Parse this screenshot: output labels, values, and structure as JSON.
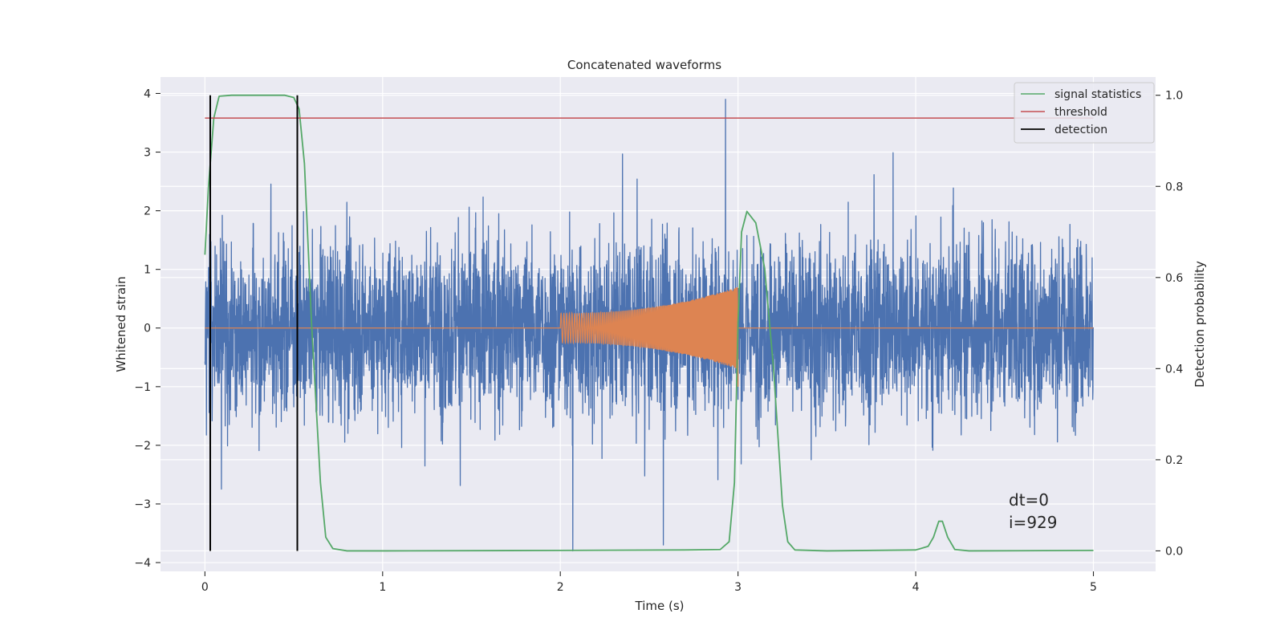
{
  "chart_data": {
    "type": "line",
    "title": "Concatenated waveforms",
    "xlabel": "Time (s)",
    "ylabel_left": "Whitened strain",
    "ylabel_right": "Detection probability",
    "xlim": [
      -0.25,
      5.35
    ],
    "ylim_left": [
      -4.15,
      4.28
    ],
    "ylim_right": [
      -0.045,
      1.04
    ],
    "x_ticks": [
      0,
      1,
      2,
      3,
      4,
      5
    ],
    "y_ticks_left": [
      -4,
      -3,
      -2,
      -1,
      0,
      1,
      2,
      3,
      4
    ],
    "y_ticks_right": [
      0.0,
      0.2,
      0.4,
      0.6,
      0.8,
      1.0
    ],
    "x_tick_labels": [
      "0",
      "1",
      "2",
      "3",
      "4",
      "5"
    ],
    "y_tick_labels_left": [
      "−4",
      "−3",
      "−2",
      "−1",
      "0",
      "1",
      "2",
      "3",
      "4"
    ],
    "y_tick_labels_right": [
      "0.0",
      "0.2",
      "0.4",
      "0.6",
      "0.8",
      "1.0"
    ],
    "grid": true,
    "legend_position": "top-right",
    "colors": {
      "strain": "#4c72b0",
      "injection": "#dd8452",
      "statistics": "#55a868",
      "threshold": "#c44e52",
      "detection": "#000000",
      "background": "#eaeaf2",
      "grid": "#ffffff"
    },
    "series": [
      {
        "name": "",
        "axis": "left",
        "kind": "noise",
        "x_range": [
          0,
          5
        ],
        "amplitude_range": [
          -3.8,
          3.9
        ],
        "notable_peaks": [
          {
            "x": 0.03,
            "y": -2.7
          },
          {
            "x": 2.07,
            "y": -3.8
          },
          {
            "x": 2.58,
            "y": -3.7
          },
          {
            "x": 2.93,
            "y": 3.9
          }
        ]
      },
      {
        "name": "",
        "axis": "left",
        "kind": "chirp",
        "x_range": [
          2.0,
          3.0
        ],
        "amplitude_start": 0.25,
        "amplitude_end": 0.7
      },
      {
        "name": "signal statistics",
        "axis": "right",
        "x": [
          0,
          0.02,
          0.05,
          0.08,
          0.15,
          0.3,
          0.45,
          0.5,
          0.53,
          0.56,
          0.6,
          0.65,
          0.68,
          0.72,
          0.8,
          1.0,
          2.0,
          2.7,
          2.9,
          2.95,
          2.98,
          3.0,
          3.02,
          3.05,
          3.1,
          3.15,
          3.2,
          3.25,
          3.28,
          3.32,
          3.5,
          4.0,
          4.07,
          4.1,
          4.13,
          4.15,
          4.18,
          4.22,
          4.3,
          5.0
        ],
        "y": [
          0.65,
          0.8,
          0.95,
          0.998,
          1.0,
          1.0,
          1.0,
          0.995,
          0.97,
          0.85,
          0.5,
          0.15,
          0.03,
          0.005,
          0.0,
          0.0,
          0.001,
          0.002,
          0.003,
          0.02,
          0.15,
          0.5,
          0.7,
          0.745,
          0.72,
          0.62,
          0.4,
          0.1,
          0.02,
          0.002,
          0.0,
          0.002,
          0.01,
          0.03,
          0.065,
          0.065,
          0.03,
          0.003,
          0.0,
          0.001
        ]
      },
      {
        "name": "threshold",
        "axis": "right",
        "x": [
          0,
          5
        ],
        "y": [
          0.95,
          0.95
        ]
      },
      {
        "name": "detection",
        "axis": "right",
        "kind": "vlines",
        "x": [
          0.03,
          0.52
        ],
        "y_bottom": 0.0,
        "y_top": 1.0
      }
    ],
    "annotations": [
      "dt=0",
      "i=929"
    ]
  }
}
